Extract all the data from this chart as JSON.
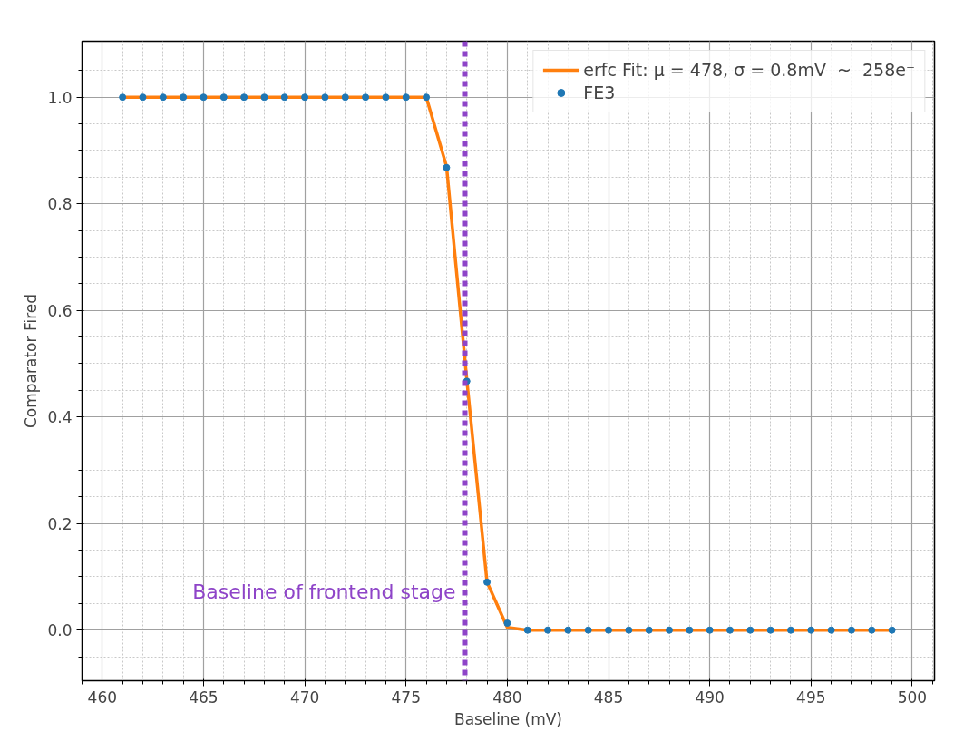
{
  "chart_data": {
    "type": "scatter",
    "xlabel": "Baseline (mV)",
    "ylabel": "Comparator Fired",
    "x": [
      461,
      462,
      463,
      464,
      465,
      466,
      467,
      468,
      469,
      470,
      471,
      472,
      473,
      474,
      475,
      476,
      477,
      478,
      479,
      480,
      481,
      482,
      483,
      484,
      485,
      486,
      487,
      488,
      489,
      490,
      491,
      492,
      493,
      494,
      495,
      496,
      497,
      498,
      499
    ],
    "series": [
      {
        "name": "erfc Fit: μ = 478, σ = 0.8mV  ~  258e⁻",
        "type": "line",
        "color": "#ff7f0e",
        "values": [
          1,
          1,
          1,
          1,
          1,
          1,
          1,
          1,
          1,
          1,
          1,
          1,
          1,
          1,
          1,
          1,
          0.87,
          0.47,
          0.09,
          0.005,
          0,
          0,
          0,
          0,
          0,
          0,
          0,
          0,
          0,
          0,
          0,
          0,
          0,
          0,
          0,
          0,
          0,
          0,
          0
        ]
      },
      {
        "name": "FE3",
        "color": "#1f77b4",
        "marker": "circle",
        "values": [
          1,
          1,
          1,
          1,
          1,
          1,
          1,
          1,
          1,
          1,
          1,
          1,
          1,
          1,
          1,
          1,
          0.868,
          0.467,
          0.09,
          0.013,
          0,
          0,
          0,
          0,
          0,
          0,
          0,
          0,
          0,
          0,
          0,
          0,
          0,
          0,
          0,
          0,
          0,
          0,
          0
        ]
      }
    ],
    "xlim": [
      459,
      501.1
    ],
    "ylim": [
      -0.095,
      1.105
    ],
    "xticks": [
      460,
      465,
      470,
      475,
      480,
      485,
      490,
      495,
      500
    ],
    "yticks": [
      {
        "value": 0,
        "label": "0.0"
      },
      {
        "value": 0.2,
        "label": "0.2"
      },
      {
        "value": 0.4,
        "label": "0.4"
      },
      {
        "value": 0.6,
        "label": "0.6"
      },
      {
        "value": 0.8,
        "label": "0.8"
      },
      {
        "value": 1,
        "label": "1.0"
      }
    ],
    "ref_lines": [
      {
        "axis": "x",
        "value": 477.9,
        "label": "Baseline of frontend stage",
        "color": "#8e44c8",
        "line_style": "dotted"
      }
    ],
    "grid": true,
    "legend": "top right"
  }
}
